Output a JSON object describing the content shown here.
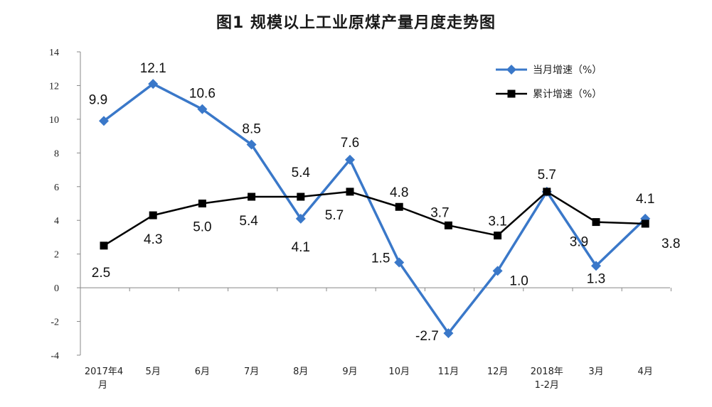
{
  "chart_data": {
    "type": "line",
    "title": "图1  规模以上工业原煤产量月度走势图",
    "categories": [
      [
        "2017年4",
        "月"
      ],
      [
        "5月"
      ],
      [
        "6月"
      ],
      [
        "7月"
      ],
      [
        "8月"
      ],
      [
        "9月"
      ],
      [
        "10月"
      ],
      [
        "11月"
      ],
      [
        "12月"
      ],
      [
        "2018年",
        "1-2月"
      ],
      [
        "3月"
      ],
      [
        "4月"
      ]
    ],
    "ylim": [
      -4,
      14
    ],
    "yticks": [
      -4,
      -2,
      0,
      2,
      4,
      6,
      8,
      10,
      12,
      14
    ],
    "legend_position": "top-right",
    "series": [
      {
        "name": "当月增速（%）",
        "color": "#3a78c9",
        "marker": "diamond",
        "values": [
          9.9,
          12.1,
          10.6,
          8.5,
          4.1,
          7.6,
          1.5,
          -2.7,
          1.0,
          5.7,
          1.3,
          4.1
        ],
        "labels": [
          "9.9",
          "12.1",
          "10.6",
          "8.5",
          "4.1",
          "7.6",
          "1.5",
          "-2.7",
          "1.0",
          "5.7",
          "1.3",
          "4.1"
        ]
      },
      {
        "name": "累计增速（%）",
        "color": "#000000",
        "marker": "square",
        "values": [
          2.5,
          4.3,
          5.0,
          5.4,
          5.4,
          5.7,
          4.8,
          3.7,
          3.1,
          5.7,
          3.9,
          3.8
        ],
        "labels": [
          "2.5",
          "4.3",
          "5.0",
          "5.4",
          "5.4",
          "5.7",
          "4.8",
          "3.7",
          "3.1",
          "5.7",
          "3.9",
          "3.8"
        ]
      }
    ]
  }
}
